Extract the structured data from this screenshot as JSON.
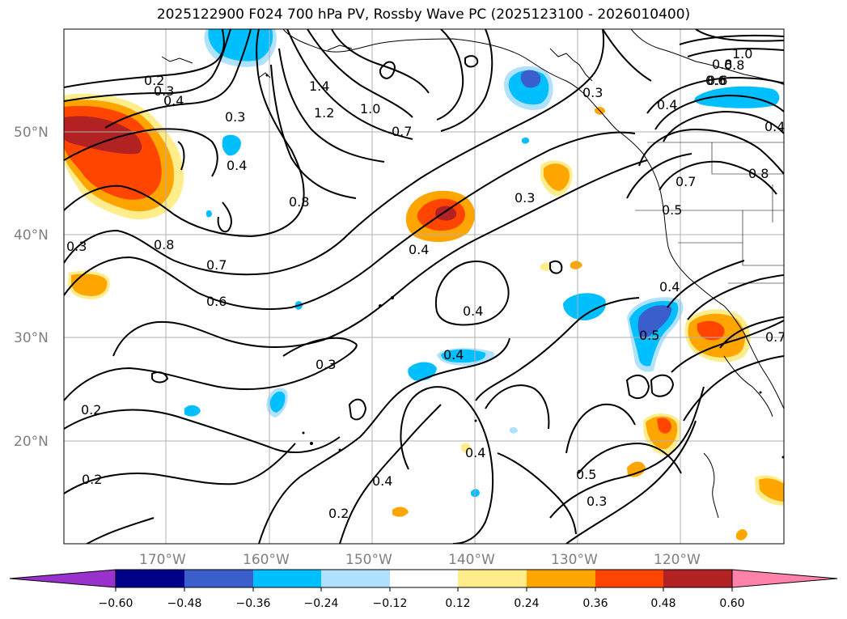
{
  "title": "2025122900 F024 700 hPa PV, Rossby Wave PC (2025123100 - 2026010400)",
  "map": {
    "lat_labels": [
      "50°N",
      "40°N",
      "30°N",
      "20°N"
    ],
    "lon_labels": [
      "170°W",
      "160°W",
      "150°W",
      "140°W",
      "130°W",
      "120°W"
    ],
    "contour_labels": [
      "0.2",
      "0.3",
      "0.4",
      "0.3",
      "0.4",
      "1.4",
      "1.2",
      "1.0",
      "0.7",
      "0.8",
      "0.8",
      "0.7",
      "0.6",
      "0.3",
      "0.4",
      "0.3",
      "0.4",
      "0.4",
      "0.3",
      "0.2",
      "0.2",
      "0.4",
      "0.2",
      "0.4",
      "0.5",
      "0.3",
      "0.5",
      "0.4",
      "0.4",
      "0.8",
      "0.6",
      "1.0",
      "0.8",
      "0.7",
      "0.5",
      "0.4",
      "0.6",
      "0.8",
      "0.7",
      "0.3"
    ],
    "land_colors": {
      "coast": "#000000",
      "grid": "#b0b0b0"
    }
  },
  "colorbar": {
    "ticks": [
      "−0.60",
      "−0.48",
      "−0.36",
      "−0.24",
      "−0.12",
      "0.12",
      "0.24",
      "0.36",
      "0.48",
      "0.60"
    ],
    "colors": [
      "#9932cc",
      "#00008b",
      "#3a5fcd",
      "#00bfff",
      "#b0e2ff",
      "#ffffff",
      "#ffec8b",
      "#ffa500",
      "#ff4500",
      "#b22222",
      "#ff82ab"
    ]
  }
}
